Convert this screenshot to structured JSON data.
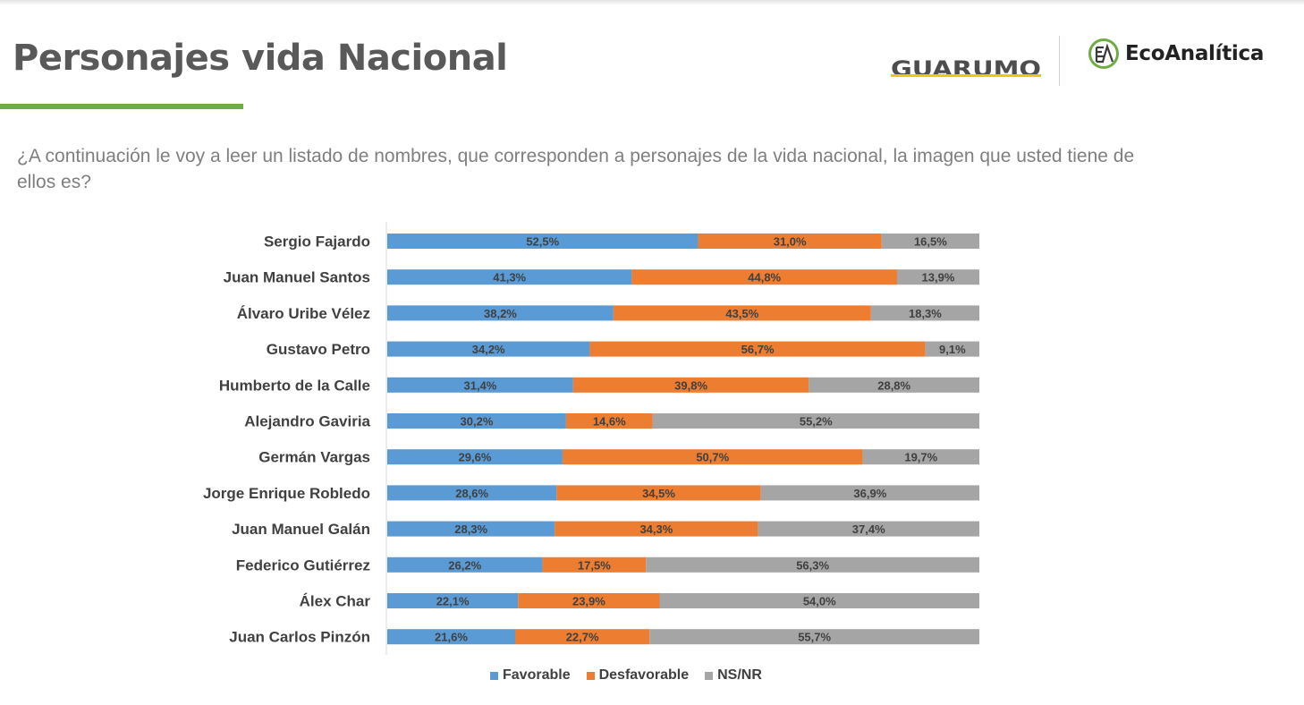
{
  "header": {
    "title": "Personajes vida Nacional",
    "logo_left": "GUARUMO",
    "logo_right": "EcoAnalítica"
  },
  "question": "¿A continuación le voy a leer un listado de nombres, que corresponden a personajes de la vida nacional, la imagen que usted tiene de ellos es?",
  "colors": {
    "favorable": "#5b9bd5",
    "desfavorable": "#ed7d31",
    "nsnr": "#a5a5a5",
    "accent_green": "#6fac46"
  },
  "icons": [
    "guarumo-logo",
    "ecoanalitica-logo-icon"
  ],
  "chart_data": {
    "type": "bar",
    "orientation": "horizontal",
    "stacked": true,
    "categories": [
      "Sergio Fajardo",
      "Juan Manuel Santos",
      "Álvaro Uribe Vélez",
      "Gustavo Petro",
      "Humberto de la Calle",
      "Alejandro Gaviria",
      "Germán Vargas",
      "Jorge Enrique Robledo",
      "Juan Manuel Galán",
      "Federico Gutiérrez",
      "Álex Char",
      "Juan Carlos Pinzón"
    ],
    "series": [
      {
        "name": "Favorable",
        "values": [
          52.5,
          41.3,
          38.2,
          34.2,
          31.4,
          30.2,
          29.6,
          28.6,
          28.3,
          26.2,
          22.1,
          21.6
        ]
      },
      {
        "name": "Desfavorable",
        "values": [
          31.0,
          44.8,
          43.5,
          56.7,
          39.8,
          14.6,
          50.7,
          34.5,
          34.3,
          17.5,
          23.9,
          22.7
        ]
      },
      {
        "name": "NS/NR",
        "values": [
          16.5,
          13.9,
          18.3,
          9.1,
          28.8,
          55.2,
          19.7,
          36.9,
          37.4,
          56.3,
          54.0,
          55.7
        ]
      }
    ],
    "data_labels": [
      [
        "52,5%",
        "41,3%",
        "38,2%",
        "34,2%",
        "31,4%",
        "30,2%",
        "29,6%",
        "28,6%",
        "28,3%",
        "26,2%",
        "22,1%",
        "21,6%"
      ],
      [
        "31,0%",
        "44,8%",
        "43,5%",
        "56,7%",
        "39,8%",
        "14,6%",
        "50,7%",
        "34,5%",
        "34,3%",
        "17,5%",
        "23,9%",
        "22,7%"
      ],
      [
        "16,5%",
        "13,9%",
        "18,3%",
        "9,1%",
        "28,8%",
        "55,2%",
        "19,7%",
        "36,9%",
        "37,4%",
        "56,3%",
        "54,0%",
        "55,7%"
      ]
    ],
    "xlim": [
      0,
      100
    ],
    "grid": false,
    "legend_position": "bottom"
  }
}
